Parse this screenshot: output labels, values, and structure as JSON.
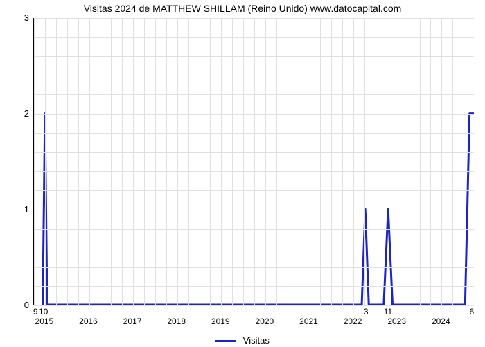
{
  "chart": {
    "type": "line",
    "title": "Visitas 2024 de MATTHEW SHILLAM (Reino Unido) www.datocapital.com",
    "title_fontsize": 14,
    "background_color": "#ffffff",
    "grid_color": "#e0e0e0",
    "axis_color": "#000000",
    "line_color": "#1d24c2",
    "line_width": 3,
    "x_axis": {
      "min": 2014.75,
      "max": 2024.75,
      "ticks": [
        2015,
        2016,
        2017,
        2018,
        2019,
        2020,
        2021,
        2022,
        2023,
        2024
      ],
      "tick_labels": [
        "2015",
        "2016",
        "2017",
        "2018",
        "2019",
        "2020",
        "2021",
        "2022",
        "2023",
        "2024"
      ],
      "minor_grid_per_major": 4,
      "label_fontsize": 12
    },
    "y_axis": {
      "min": 0,
      "max": 3,
      "ticks": [
        0,
        1,
        2,
        3
      ],
      "tick_labels": [
        "0",
        "1",
        "2",
        "3"
      ],
      "minor_grid_per_major": 5,
      "label_fontsize": 13
    },
    "series": [
      {
        "name": "Visitas",
        "color": "#1d24c2",
        "points_x": [
          2014.95,
          2015.0,
          2015.05,
          2022.2,
          2022.28,
          2022.36,
          2022.7,
          2022.8,
          2022.9,
          2024.55,
          2024.65,
          2024.75
        ],
        "points_y": [
          0,
          2,
          0,
          0,
          1,
          0,
          0,
          1,
          0,
          0,
          2,
          2
        ]
      }
    ],
    "below_axis_numbers": [
      {
        "x": 2014.8,
        "label": "9"
      },
      {
        "x": 2014.98,
        "label": "10"
      },
      {
        "x": 2022.3,
        "label": "3"
      },
      {
        "x": 2022.8,
        "label": "11"
      },
      {
        "x": 2024.7,
        "label": "6"
      }
    ],
    "legend": {
      "label": "Visitas",
      "swatch_color": "#1d24c2"
    }
  }
}
